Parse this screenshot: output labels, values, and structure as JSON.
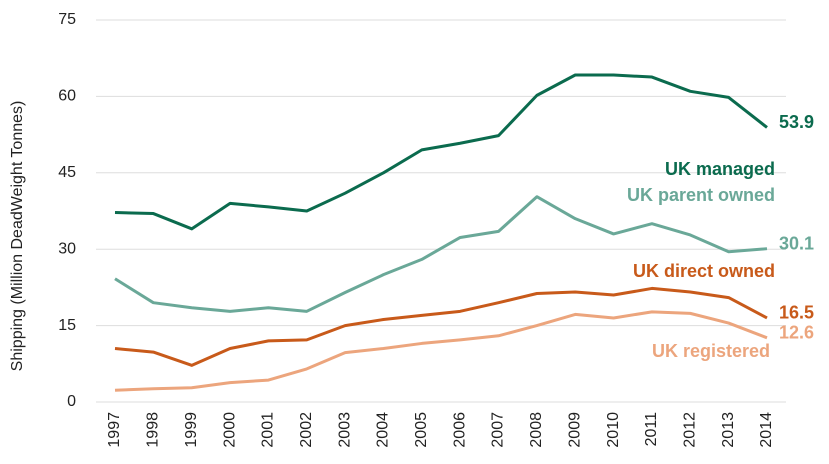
{
  "chart_data": {
    "type": "line",
    "y_label": "Shipping (Million DeadWeight Tonnes)",
    "categories": [
      "1997",
      "1998",
      "1999",
      "2000",
      "2001",
      "2002",
      "2003",
      "2004",
      "2005",
      "2006",
      "2007",
      "2008",
      "2009",
      "2010",
      "2011",
      "2012",
      "2013",
      "2014"
    ],
    "ylim": [
      0,
      75
    ],
    "yticks": [
      0,
      15,
      30,
      45,
      60,
      75
    ],
    "grid": true,
    "series": [
      {
        "name": "UK managed",
        "color": "#0b6b4e",
        "values": [
          37.2,
          37.0,
          34.0,
          39.0,
          38.3,
          37.5,
          41.0,
          45.0,
          49.5,
          50.8,
          52.3,
          60.2,
          64.2,
          64.2,
          63.8,
          61.0,
          59.8,
          53.9
        ]
      },
      {
        "name": "UK parent owned",
        "color": "#6aa898",
        "values": [
          24.2,
          19.5,
          18.5,
          17.8,
          18.5,
          17.8,
          21.5,
          25.0,
          28.0,
          32.3,
          33.5,
          40.3,
          36.0,
          33.0,
          35.0,
          32.8,
          29.5,
          30.1
        ]
      },
      {
        "name": "UK direct owned",
        "color": "#c85a1a",
        "values": [
          10.5,
          9.8,
          7.2,
          10.5,
          12.0,
          12.2,
          15.0,
          16.2,
          17.0,
          17.8,
          19.5,
          21.3,
          21.6,
          21.0,
          22.3,
          21.6,
          20.5,
          16.5
        ]
      },
      {
        "name": "UK registered",
        "color": "#eca57d",
        "values": [
          2.3,
          2.6,
          2.8,
          3.8,
          4.3,
          6.5,
          9.7,
          10.5,
          11.5,
          12.2,
          13.0,
          15.0,
          17.2,
          16.5,
          17.7,
          17.4,
          15.5,
          12.6
        ]
      }
    ]
  }
}
